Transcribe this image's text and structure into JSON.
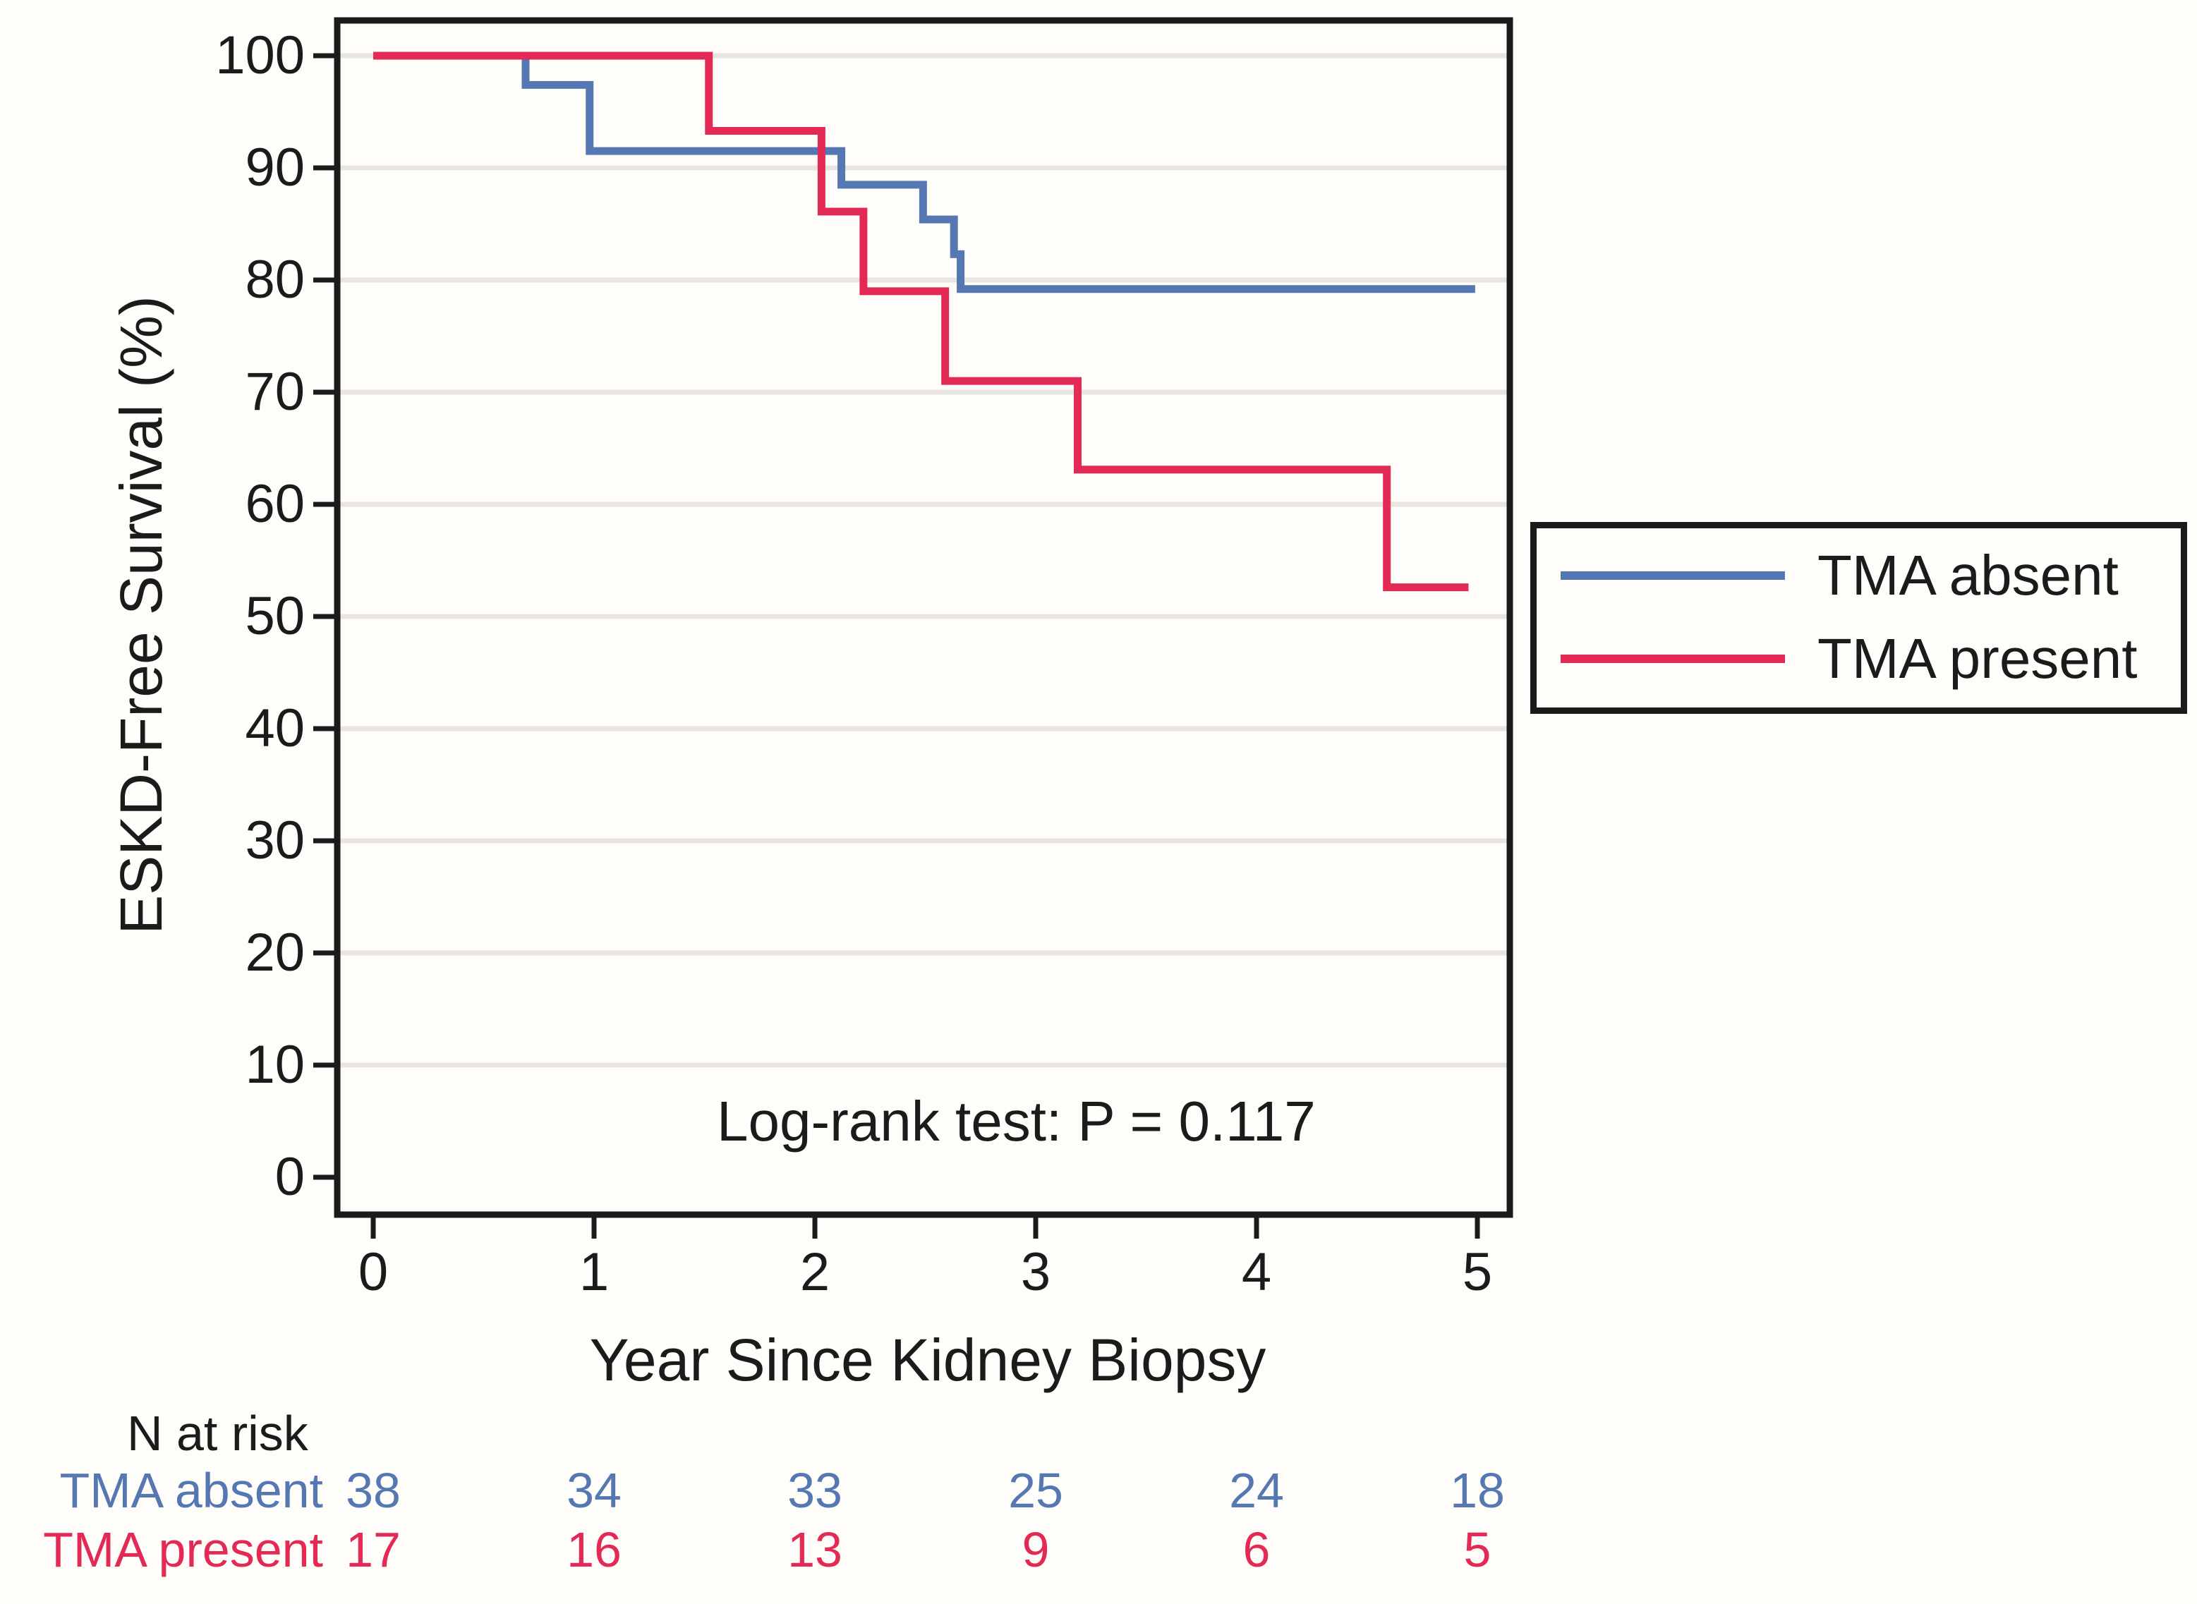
{
  "palette": {
    "blue": "#5577b2",
    "red": "#e22a55",
    "frame": "#1b1b1b",
    "grid": "#e8e5e0",
    "text": "#1b1b1b",
    "background": "#fffdf9"
  },
  "chart_data": {
    "type": "line",
    "subtype": "kaplan-meier-step",
    "title": "",
    "xlabel": "Year Since Kidney Biopsy",
    "ylabel": "ESKD-Free Survival (%)",
    "xlim": [
      0,
      5.15
    ],
    "ylim": [
      0,
      100
    ],
    "x_ticks": [
      0,
      1,
      2,
      3,
      4,
      5
    ],
    "y_ticks": [
      0,
      10,
      20,
      30,
      40,
      50,
      60,
      70,
      80,
      90,
      100
    ],
    "grid": "horizontal-10-to-100",
    "legend_position": "right-outside",
    "annotation": "Log-rank test: P = 0.117",
    "series": [
      {
        "name": "TMA absent",
        "color_key": "blue",
        "steps": [
          [
            0,
            100
          ],
          [
            0.69,
            97.4
          ],
          [
            0.98,
            91.5
          ],
          [
            2.12,
            88.5
          ],
          [
            2.49,
            85.4
          ],
          [
            2.63,
            82.3
          ],
          [
            2.66,
            79.2
          ]
        ],
        "end_x": 4.99
      },
      {
        "name": "TMA present",
        "color_key": "red",
        "steps": [
          [
            0,
            100
          ],
          [
            1.52,
            93.3
          ],
          [
            2.03,
            86.1
          ],
          [
            2.22,
            79.0
          ],
          [
            2.59,
            71.0
          ],
          [
            3.19,
            63.1
          ],
          [
            4.59,
            52.6
          ]
        ],
        "end_x": 4.96
      }
    ]
  },
  "legend": {
    "items": [
      {
        "label": "TMA absent",
        "color_key": "blue"
      },
      {
        "label": "TMA present",
        "color_key": "red"
      }
    ]
  },
  "risk_table": {
    "title": "N at risk",
    "time_points": [
      0,
      1,
      2,
      3,
      4,
      5
    ],
    "rows": [
      {
        "label": "TMA absent",
        "color_key": "blue",
        "counts": [
          38,
          34,
          33,
          25,
          24,
          18
        ]
      },
      {
        "label": "TMA present",
        "color_key": "red",
        "counts": [
          17,
          16,
          13,
          9,
          6,
          5
        ]
      }
    ]
  }
}
